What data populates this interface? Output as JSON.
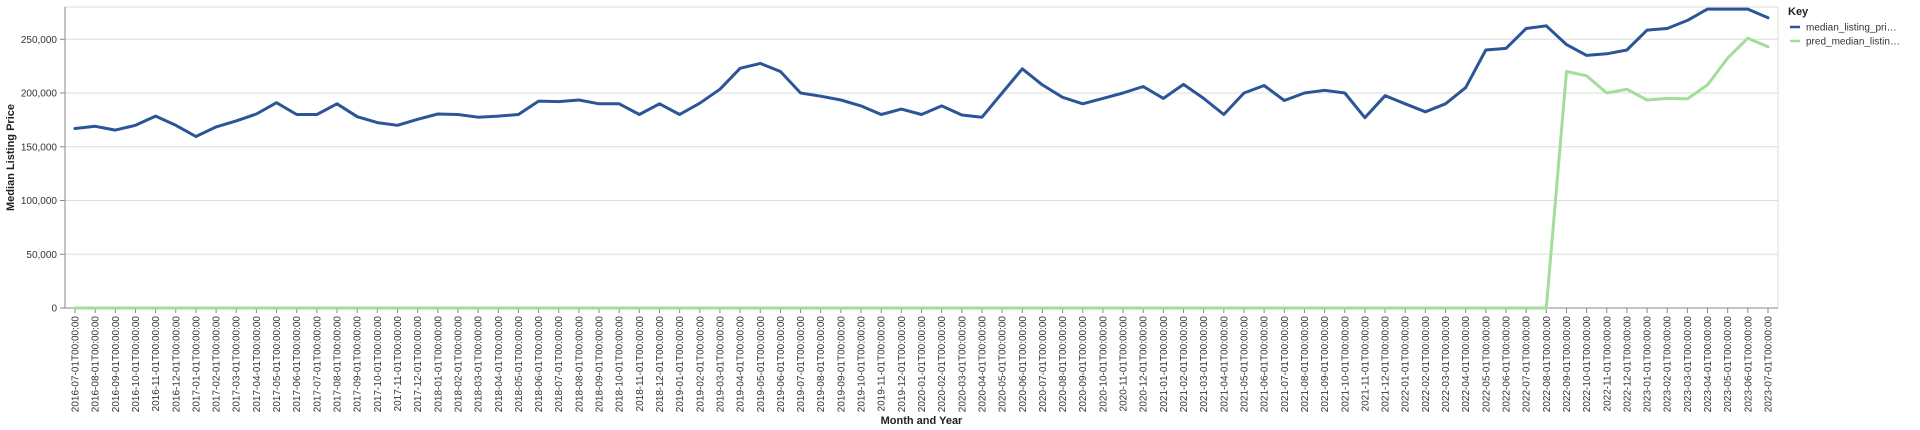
{
  "chart_data": {
    "type": "line",
    "title": "",
    "xlabel": "Month and Year",
    "ylabel": "Median Listing Price",
    "ylim": [
      0,
      280000
    ],
    "yticks": [
      0,
      50000,
      100000,
      150000,
      200000,
      250000
    ],
    "ytick_labels": [
      "0",
      "50,000",
      "100,000",
      "150,000",
      "200,000",
      "250,000"
    ],
    "grid": true,
    "legend": {
      "title": "Key",
      "placement": "top-right"
    },
    "categories": [
      "2016-07-01T00:00:00",
      "2016-08-01T00:00:00",
      "2016-09-01T00:00:00",
      "2016-10-01T00:00:00",
      "2016-11-01T00:00:00",
      "2016-12-01T00:00:00",
      "2017-01-01T00:00:00",
      "2017-02-01T00:00:00",
      "2017-03-01T00:00:00",
      "2017-04-01T00:00:00",
      "2017-05-01T00:00:00",
      "2017-06-01T00:00:00",
      "2017-07-01T00:00:00",
      "2017-08-01T00:00:00",
      "2017-09-01T00:00:00",
      "2017-10-01T00:00:00",
      "2017-11-01T00:00:00",
      "2017-12-01T00:00:00",
      "2018-01-01T00:00:00",
      "2018-02-01T00:00:00",
      "2018-03-01T00:00:00",
      "2018-04-01T00:00:00",
      "2018-05-01T00:00:00",
      "2018-06-01T00:00:00",
      "2018-07-01T00:00:00",
      "2018-08-01T00:00:00",
      "2018-09-01T00:00:00",
      "2018-10-01T00:00:00",
      "2018-11-01T00:00:00",
      "2018-12-01T00:00:00",
      "2019-01-01T00:00:00",
      "2019-02-01T00:00:00",
      "2019-03-01T00:00:00",
      "2019-04-01T00:00:00",
      "2019-05-01T00:00:00",
      "2019-06-01T00:00:00",
      "2019-07-01T00:00:00",
      "2019-08-01T00:00:00",
      "2019-09-01T00:00:00",
      "2019-10-01T00:00:00",
      "2019-11-01T00:00:00",
      "2019-12-01T00:00:00",
      "2020-01-01T00:00:00",
      "2020-02-01T00:00:00",
      "2020-03-01T00:00:00",
      "2020-04-01T00:00:00",
      "2020-05-01T00:00:00",
      "2020-06-01T00:00:00",
      "2020-07-01T00:00:00",
      "2020-08-01T00:00:00",
      "2020-09-01T00:00:00",
      "2020-10-01T00:00:00",
      "2020-11-01T00:00:00",
      "2020-12-01T00:00:00",
      "2021-01-01T00:00:00",
      "2021-02-01T00:00:00",
      "2021-03-01T00:00:00",
      "2021-04-01T00:00:00",
      "2021-05-01T00:00:00",
      "2021-06-01T00:00:00",
      "2021-07-01T00:00:00",
      "2021-08-01T00:00:00",
      "2021-09-01T00:00:00",
      "2021-10-01T00:00:00",
      "2021-11-01T00:00:00",
      "2021-12-01T00:00:00",
      "2022-01-01T00:00:00",
      "2022-02-01T00:00:00",
      "2022-03-01T00:00:00",
      "2022-04-01T00:00:00",
      "2022-05-01T00:00:00",
      "2022-06-01T00:00:00",
      "2022-07-01T00:00:00",
      "2022-08-01T00:00:00",
      "2022-09-01T00:00:00",
      "2022-10-01T00:00:00",
      "2022-11-01T00:00:00",
      "2022-12-01T00:00:00",
      "2023-01-01T00:00:00",
      "2023-02-01T00:00:00",
      "2023-03-01T00:00:00",
      "2023-04-01T00:00:00",
      "2023-05-01T00:00:00",
      "2023-06-01T00:00:00",
      "2023-07-01T00:00:00"
    ],
    "series": [
      {
        "name": "median_listing_pri…",
        "color": "#2b5597",
        "values": [
          167000,
          169000,
          165500,
          170000,
          178500,
          170000,
          159500,
          168500,
          174000,
          180500,
          191000,
          180000,
          180000,
          190000,
          178000,
          172500,
          170000,
          175500,
          180500,
          180000,
          177500,
          178500,
          180000,
          192500,
          192000,
          193500,
          190000,
          190000,
          180000,
          190000,
          180000,
          190500,
          203500,
          223000,
          227500,
          220000,
          200000,
          197000,
          193500,
          188000,
          180000,
          185000,
          180000,
          188000,
          179500,
          177500,
          200000,
          222500,
          207500,
          196000,
          190000,
          195000,
          200000,
          206000,
          195000,
          208000,
          195000,
          180000,
          200000,
          207000,
          193000,
          200000,
          202500,
          200000,
          177000,
          197500,
          190000,
          182500,
          190000,
          205000,
          240000,
          241500,
          260000,
          262500,
          245000,
          235000,
          236500,
          240000,
          258500,
          260000,
          267500,
          278000,
          278000,
          278000,
          270000
        ]
      },
      {
        "name": "pred_median_listin…",
        "color": "#a3dd9a",
        "values": [
          0,
          0,
          0,
          0,
          0,
          0,
          0,
          0,
          0,
          0,
          0,
          0,
          0,
          0,
          0,
          0,
          0,
          0,
          0,
          0,
          0,
          0,
          0,
          0,
          0,
          0,
          0,
          0,
          0,
          0,
          0,
          0,
          0,
          0,
          0,
          0,
          0,
          0,
          0,
          0,
          0,
          0,
          0,
          0,
          0,
          0,
          0,
          0,
          0,
          0,
          0,
          0,
          0,
          0,
          0,
          0,
          0,
          0,
          0,
          0,
          0,
          0,
          0,
          0,
          0,
          0,
          0,
          0,
          0,
          0,
          0,
          0,
          0,
          0,
          220000,
          216000,
          200000,
          203500,
          193500,
          195000,
          194500,
          207500,
          232500,
          251000,
          243000
        ]
      }
    ]
  }
}
